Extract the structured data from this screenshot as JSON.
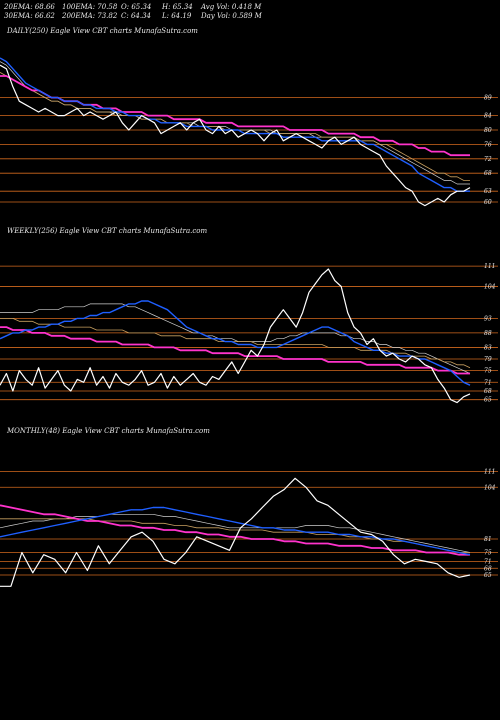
{
  "header": {
    "ema20": "20EMA: 68.66",
    "ema100": "100EMA: 70.58",
    "open": "O: 65.34",
    "high": "H: 65.34",
    "avg_vol": "Avg Vol: 0.418  M",
    "ema30": "30EMA: 66.62",
    "ema200": "200EMA: 73.82",
    "close": "C: 64.34",
    "low": "L: 64.19",
    "day_vol": "Day Vol: 0.589 M"
  },
  "colors": {
    "price": "#ffffff",
    "ema_short": "#1f5fff",
    "ema_long": "#ff33cc",
    "ema_mid": "#c8a060",
    "ema_light": "#d0d0d0",
    "level": "#d2691e",
    "background": "#000000"
  },
  "chart_data": [
    {
      "type": "line",
      "title": "DAILY(250) Eagle  View  CBT charts MunafaSutra.com",
      "ylim": [
        55,
        105
      ],
      "level_labels": [
        "89",
        "84",
        "80",
        "76",
        "72",
        "68",
        "63",
        "60"
      ],
      "levels": [
        89,
        84,
        80,
        76,
        72,
        68,
        63,
        60
      ],
      "price": [
        98,
        97,
        92,
        88,
        87,
        86,
        85,
        86,
        85,
        84,
        84,
        85,
        86,
        84,
        85,
        84,
        83,
        84,
        85,
        82,
        80,
        82,
        84,
        83,
        82,
        79,
        80,
        81,
        82,
        80,
        82,
        83,
        80,
        79,
        81,
        79,
        80,
        78,
        79,
        80,
        79,
        77,
        79,
        80,
        77,
        78,
        79,
        78,
        77,
        76,
        75,
        77,
        78,
        76,
        77,
        78,
        76,
        75,
        74,
        73,
        70,
        68,
        66,
        64,
        63,
        60,
        59,
        60,
        61,
        60,
        62,
        63,
        63,
        64
      ],
      "ema_blue": [
        100,
        99,
        97,
        95,
        93,
        92,
        91,
        90,
        89,
        89,
        88,
        88,
        88,
        87,
        87,
        86,
        86,
        86,
        85,
        85,
        84,
        84,
        84,
        83,
        83,
        82,
        82,
        82,
        82,
        81,
        81,
        81,
        81,
        80,
        80,
        80,
        80,
        80,
        79,
        79,
        79,
        79,
        79,
        79,
        78,
        78,
        78,
        78,
        78,
        78,
        77,
        77,
        77,
        77,
        77,
        77,
        77,
        76,
        76,
        75,
        74,
        73,
        72,
        71,
        70,
        68,
        67,
        66,
        65,
        64,
        64,
        63,
        63,
        63
      ],
      "ema_magenta": [
        95,
        95,
        94,
        93,
        92,
        91,
        91,
        90,
        89,
        89,
        88,
        88,
        88,
        87,
        87,
        87,
        86,
        86,
        86,
        85,
        85,
        85,
        85,
        84,
        84,
        84,
        84,
        83,
        83,
        83,
        83,
        83,
        82,
        82,
        82,
        82,
        82,
        81,
        81,
        81,
        81,
        81,
        81,
        81,
        81,
        80,
        80,
        80,
        80,
        80,
        80,
        79,
        79,
        79,
        79,
        79,
        78,
        78,
        78,
        77,
        77,
        77,
        76,
        76,
        76,
        75,
        75,
        74,
        74,
        74,
        73,
        73,
        73,
        73
      ],
      "ema_mid": [
        96,
        95,
        94,
        93,
        92,
        91,
        90,
        89,
        88,
        88,
        87,
        87,
        86,
        86,
        86,
        85,
        85,
        85,
        84,
        84,
        84,
        84,
        83,
        83,
        83,
        83,
        82,
        82,
        82,
        82,
        81,
        81,
        81,
        81,
        81,
        80,
        80,
        80,
        80,
        80,
        80,
        80,
        79,
        79,
        79,
        79,
        79,
        79,
        79,
        79,
        78,
        78,
        78,
        78,
        78,
        78,
        77,
        77,
        77,
        76,
        76,
        75,
        74,
        73,
        72,
        71,
        70,
        69,
        68,
        68,
        67,
        67,
        66,
        66
      ],
      "ema_light": [
        99,
        98,
        96,
        94,
        92,
        91,
        90,
        89,
        88,
        88,
        87,
        87,
        86,
        86,
        86,
        85,
        85,
        85,
        85,
        84,
        84,
        84,
        83,
        83,
        83,
        83,
        82,
        82,
        82,
        82,
        82,
        81,
        81,
        81,
        81,
        81,
        80,
        80,
        80,
        80,
        80,
        80,
        80,
        79,
        79,
        79,
        79,
        79,
        79,
        78,
        78,
        78,
        78,
        78,
        78,
        78,
        77,
        77,
        77,
        76,
        75,
        74,
        73,
        72,
        71,
        70,
        69,
        68,
        67,
        66,
        66,
        65,
        65,
        65
      ]
    },
    {
      "type": "line",
      "title": "WEEKLY(256) Eagle  View  CBT charts MunafaSutra.com",
      "ylim": [
        58,
        120
      ],
      "level_labels": [
        "111",
        "104",
        "93",
        "88",
        "83",
        "79",
        "75",
        "71",
        "68",
        "65"
      ],
      "levels": [
        111,
        104,
        93,
        88,
        83,
        79,
        75,
        71,
        68,
        65
      ],
      "price": [
        70,
        74,
        68,
        75,
        72,
        70,
        76,
        69,
        72,
        75,
        70,
        68,
        72,
        71,
        76,
        70,
        73,
        69,
        74,
        71,
        70,
        72,
        75,
        70,
        71,
        74,
        69,
        73,
        70,
        72,
        74,
        71,
        70,
        73,
        72,
        75,
        78,
        74,
        78,
        82,
        80,
        84,
        90,
        93,
        96,
        93,
        90,
        95,
        102,
        105,
        108,
        110,
        106,
        104,
        95,
        90,
        88,
        84,
        86,
        82,
        80,
        81,
        79,
        78,
        80,
        79,
        77,
        76,
        72,
        69,
        65,
        64,
        66,
        67
      ],
      "ema_blue": [
        86,
        87,
        88,
        88,
        89,
        89,
        90,
        90,
        91,
        91,
        92,
        92,
        93,
        93,
        94,
        94,
        95,
        95,
        96,
        97,
        98,
        98,
        99,
        99,
        98,
        97,
        96,
        94,
        92,
        90,
        89,
        88,
        87,
        86,
        86,
        85,
        85,
        84,
        84,
        84,
        83,
        83,
        83,
        83,
        84,
        85,
        86,
        87,
        88,
        89,
        90,
        90,
        89,
        88,
        87,
        85,
        84,
        83,
        82,
        82,
        81,
        81,
        80,
        80,
        80,
        79,
        79,
        78,
        77,
        76,
        75,
        73,
        71,
        70
      ],
      "ema_magenta": [
        90,
        90,
        89,
        89,
        89,
        88,
        88,
        88,
        87,
        87,
        87,
        86,
        86,
        86,
        86,
        85,
        85,
        85,
        85,
        84,
        84,
        84,
        84,
        84,
        83,
        83,
        83,
        83,
        82,
        82,
        82,
        82,
        82,
        81,
        81,
        81,
        81,
        81,
        80,
        80,
        80,
        80,
        80,
        80,
        79,
        79,
        79,
        79,
        79,
        79,
        79,
        78,
        78,
        78,
        78,
        78,
        78,
        77,
        77,
        77,
        77,
        77,
        77,
        76,
        76,
        76,
        76,
        76,
        75,
        75,
        75,
        74,
        74,
        74
      ],
      "ema_mid": [
        93,
        93,
        93,
        92,
        92,
        92,
        91,
        91,
        91,
        91,
        90,
        90,
        90,
        90,
        90,
        89,
        89,
        89,
        89,
        89,
        88,
        88,
        88,
        88,
        88,
        87,
        87,
        87,
        87,
        86,
        86,
        86,
        86,
        86,
        85,
        85,
        85,
        85,
        85,
        85,
        84,
        84,
        84,
        84,
        84,
        84,
        84,
        84,
        84,
        84,
        84,
        83,
        83,
        83,
        83,
        83,
        82,
        82,
        82,
        82,
        82,
        81,
        81,
        81,
        80,
        80,
        80,
        79,
        79,
        78,
        78,
        77,
        77,
        76
      ],
      "ema_light": [
        95,
        95,
        95,
        95,
        95,
        95,
        96,
        96,
        96,
        96,
        97,
        97,
        97,
        97,
        98,
        98,
        98,
        98,
        98,
        98,
        97,
        97,
        96,
        95,
        94,
        93,
        92,
        91,
        90,
        89,
        88,
        88,
        87,
        87,
        86,
        86,
        86,
        85,
        85,
        85,
        85,
        85,
        85,
        86,
        86,
        87,
        87,
        88,
        88,
        88,
        88,
        88,
        88,
        87,
        87,
        86,
        86,
        85,
        85,
        84,
        84,
        83,
        83,
        82,
        82,
        81,
        81,
        80,
        79,
        78,
        77,
        76,
        75,
        74
      ]
    },
    {
      "type": "line",
      "title": "MONTHLY(48) Eagle  View  CBT charts MunafaSutra.com",
      "ylim": [
        45,
        125
      ],
      "level_labels": [
        "111",
        "104",
        "81",
        "75",
        "71",
        "68",
        "65"
      ],
      "levels": [
        111,
        104,
        81,
        75,
        71,
        68,
        65
      ],
      "price": [
        60,
        60,
        75,
        66,
        74,
        72,
        66,
        75,
        67,
        78,
        70,
        76,
        82,
        84,
        80,
        72,
        70,
        75,
        82,
        80,
        78,
        76,
        86,
        90,
        95,
        100,
        103,
        108,
        104,
        98,
        96,
        92,
        88,
        84,
        83,
        80,
        74,
        70,
        72,
        71,
        70,
        66,
        64,
        65
      ],
      "ema_blue": [
        82,
        83,
        84,
        85,
        86,
        87,
        88,
        89,
        90,
        91,
        92,
        93,
        94,
        94,
        95,
        95,
        94,
        93,
        92,
        91,
        90,
        89,
        88,
        87,
        86,
        86,
        85,
        85,
        84,
        84,
        84,
        83,
        83,
        82,
        82,
        81,
        81,
        80,
        79,
        78,
        77,
        76,
        75,
        74
      ],
      "ema_magenta": [
        96,
        95,
        94,
        93,
        92,
        92,
        91,
        90,
        89,
        89,
        88,
        87,
        87,
        86,
        86,
        85,
        85,
        84,
        84,
        83,
        83,
        82,
        82,
        81,
        81,
        81,
        80,
        80,
        79,
        79,
        79,
        78,
        78,
        78,
        77,
        77,
        76,
        76,
        76,
        75,
        75,
        75,
        74,
        74
      ],
      "ema_mid": [
        90,
        90,
        90,
        90,
        90,
        90,
        90,
        90,
        90,
        89,
        89,
        89,
        89,
        88,
        88,
        88,
        87,
        87,
        86,
        86,
        86,
        85,
        85,
        85,
        85,
        84,
        84,
        84,
        84,
        83,
        83,
        83,
        82,
        82,
        81,
        81,
        80,
        80,
        79,
        78,
        77,
        76,
        75,
        75
      ],
      "ema_light": [
        86,
        87,
        88,
        89,
        89,
        90,
        90,
        91,
        91,
        91,
        92,
        92,
        92,
        92,
        92,
        91,
        91,
        90,
        89,
        88,
        87,
        86,
        86,
        86,
        86,
        86,
        86,
        86,
        87,
        87,
        87,
        86,
        86,
        85,
        84,
        83,
        82,
        81,
        80,
        79,
        78,
        77,
        76,
        75
      ]
    }
  ]
}
